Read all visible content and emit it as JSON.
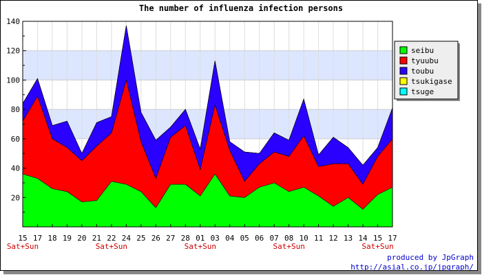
{
  "chart_data": {
    "type": "area",
    "stacked": true,
    "title": "The number of influenza infection persons",
    "categories": [
      "15",
      "17",
      "18",
      "19",
      "20",
      "21",
      "22",
      "24",
      "25",
      "26",
      "27",
      "28",
      "01",
      "03",
      "04",
      "05",
      "06",
      "07",
      "08",
      "10",
      "11",
      "12",
      "13",
      "14",
      "15",
      "17"
    ],
    "weekend_labels": [
      "Sat+Sun",
      "",
      "",
      "",
      "",
      "",
      "Sat+Sun",
      "",
      "",
      "",
      "",
      "",
      "Sat+Sun",
      "",
      "",
      "",
      "",
      "",
      "Sat+Sun",
      "",
      "",
      "",
      "",
      "",
      "Sat+Sun",
      ""
    ],
    "ylim": [
      0,
      140
    ],
    "yticks": [
      20,
      40,
      60,
      80,
      100,
      120,
      140
    ],
    "grid": true,
    "legend_position": "right",
    "series": [
      {
        "name": "seibu",
        "color": "#00ff00",
        "values": [
          36,
          33,
          26,
          24,
          17,
          18,
          31,
          29,
          24,
          13,
          29,
          29,
          21,
          36,
          21,
          20,
          27,
          30,
          24,
          27,
          21,
          14,
          20,
          12,
          22,
          27
        ]
      },
      {
        "name": "tyuubu",
        "color": "#ff0000",
        "values": [
          36,
          56,
          34,
          30,
          28,
          37,
          33,
          71,
          34,
          20,
          32,
          40,
          18,
          47,
          31,
          11,
          16,
          21,
          24,
          35,
          20,
          29,
          23,
          17,
          26,
          33
        ]
      },
      {
        "name": "toubu",
        "color": "#2a00ff",
        "values": [
          12,
          12,
          9,
          18,
          5,
          16,
          11,
          37,
          20,
          26,
          7,
          11,
          14,
          30,
          6,
          20,
          7,
          13,
          11,
          25,
          8,
          18,
          11,
          13,
          6,
          21
        ]
      },
      {
        "name": "tsukigase",
        "color": "#ffff00",
        "values": [
          0,
          0,
          0,
          0,
          0,
          0,
          0,
          0,
          0,
          0,
          0,
          0,
          0,
          0,
          0,
          0,
          0,
          0,
          0,
          0,
          0,
          0,
          0,
          0,
          0,
          0
        ]
      },
      {
        "name": "tsuge",
        "color": "#00ffff",
        "values": [
          0,
          0,
          0,
          0,
          0,
          0,
          0,
          0,
          0,
          0,
          0,
          0,
          0,
          0,
          0,
          0,
          0,
          0,
          0,
          0,
          0,
          0,
          0,
          0,
          0,
          0
        ]
      }
    ]
  },
  "credit": {
    "line1": "produced by JpGraph",
    "line2": "http://asial.co.jp/jpgraph/"
  }
}
